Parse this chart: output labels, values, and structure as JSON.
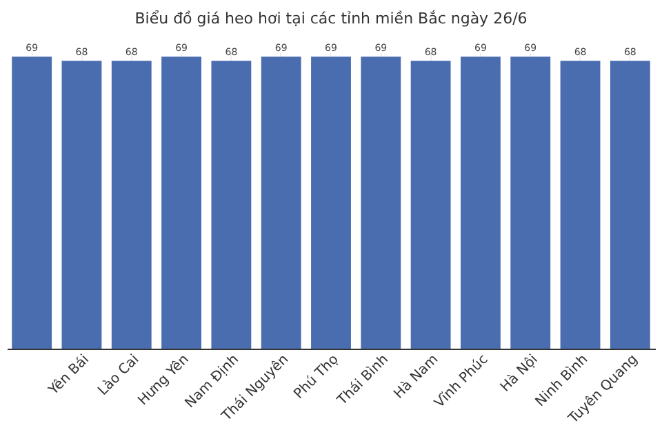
{
  "chart_data": {
    "type": "bar",
    "title": "Biểu đồ giá heo hơi tại các tỉnh miền Bắc ngày 26/6",
    "categories": [
      null,
      "Yên Bái",
      "Lào Cai",
      "Hưng Yên",
      "Nam Định",
      "Thái Nguyên",
      "Phú Thọ",
      "Thái Bình",
      "Hà Nam",
      "Vĩnh Phúc",
      "Hà Nội",
      "Ninh Bình",
      "Tuyên Quang"
    ],
    "values": [
      69,
      68,
      68,
      69,
      68,
      69,
      69,
      69,
      68,
      69,
      69,
      68,
      68
    ],
    "color": "#4a6db0",
    "data_labels": true,
    "grid": "x"
  }
}
